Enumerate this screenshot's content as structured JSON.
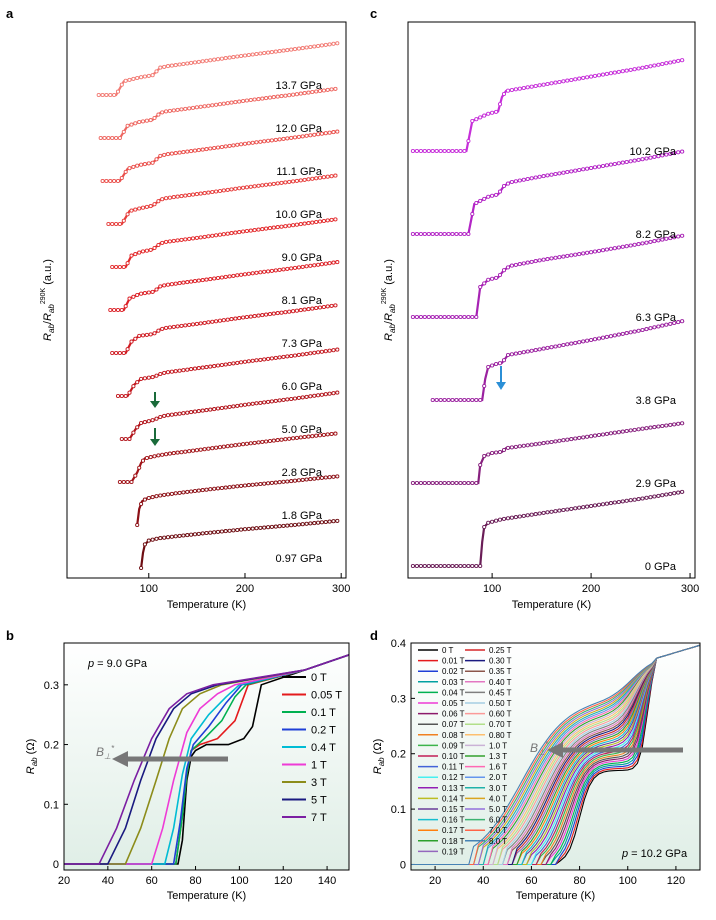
{
  "chart_data": [
    {
      "panel": "a",
      "type": "line",
      "xlabel": "Temperature (K)",
      "ylabel": "R_ab/R_ab^290K (a.u.)",
      "xlim": [
        15,
        305
      ],
      "xticks": [
        100,
        200,
        300
      ],
      "x_tick_labels": [
        "100",
        "200",
        "300"
      ],
      "series": [
        {
          "name": "0.97 GPa",
          "color": "#6e0d12",
          "x": [
            92,
            94,
            96,
            100,
            110,
            130,
            160,
            200,
            250,
            296
          ],
          "y": [
            0,
            0.4,
            0.62,
            0.72,
            0.78,
            0.84,
            0.92,
            1.02,
            1.13,
            1.24
          ]
        },
        {
          "name": "1.8 GPa",
          "color": "#8c1016",
          "x": [
            88,
            90,
            93,
            98,
            110,
            130,
            160,
            200,
            250,
            296
          ],
          "y": [
            0,
            0.42,
            0.62,
            0.7,
            0.77,
            0.84,
            0.93,
            1.04,
            1.16,
            1.28
          ]
        },
        {
          "name": "2.8 GPa",
          "color": "#a11318",
          "x": [
            70,
            82,
            88,
            92,
            96,
            110,
            120,
            160,
            200,
            250,
            296
          ],
          "y": [
            0,
            0,
            0.25,
            0.5,
            0.62,
            0.7,
            0.74,
            0.87,
            1.0,
            1.15,
            1.28
          ]
        },
        {
          "name": "5.0 GPa",
          "color": "#b2141b",
          "x": [
            72,
            80,
            86,
            92,
            105,
            112,
            118,
            160,
            200,
            250,
            296
          ],
          "y": [
            0,
            0,
            0.25,
            0.42,
            0.5,
            0.58,
            0.62,
            0.76,
            0.9,
            1.06,
            1.22
          ]
        },
        {
          "name": "6.0 GPa",
          "color": "#c3181f",
          "x": [
            68,
            78,
            85,
            92,
            105,
            112,
            118,
            160,
            200,
            250,
            296
          ],
          "y": [
            0,
            0,
            0.3,
            0.45,
            0.5,
            0.58,
            0.62,
            0.76,
            0.9,
            1.06,
            1.22
          ]
        },
        {
          "name": "7.3 GPa",
          "color": "#cf1c23",
          "x": [
            62,
            76,
            82,
            90,
            105,
            112,
            118,
            160,
            200,
            250,
            296
          ],
          "y": [
            0,
            0,
            0.3,
            0.45,
            0.5,
            0.62,
            0.66,
            0.8,
            0.94,
            1.1,
            1.26
          ]
        },
        {
          "name": "8.1 GPa",
          "color": "#dc2127",
          "x": [
            60,
            74,
            80,
            90,
            105,
            112,
            118,
            160,
            200,
            250,
            296
          ],
          "y": [
            0,
            0,
            0.3,
            0.42,
            0.48,
            0.62,
            0.66,
            0.8,
            0.94,
            1.1,
            1.26
          ]
        },
        {
          "name": "9.0 GPa",
          "color": "#e32b2d",
          "x": [
            62,
            76,
            82,
            92,
            104,
            112,
            118,
            160,
            200,
            250,
            296
          ],
          "y": [
            0,
            0,
            0.3,
            0.4,
            0.46,
            0.62,
            0.66,
            0.8,
            0.94,
            1.1,
            1.26
          ]
        },
        {
          "name": "10.0 GPa",
          "color": "#e63d3b",
          "x": [
            58,
            72,
            80,
            92,
            104,
            112,
            118,
            160,
            200,
            250,
            296
          ],
          "y": [
            0,
            0,
            0.34,
            0.42,
            0.48,
            0.64,
            0.68,
            0.82,
            0.96,
            1.12,
            1.28
          ]
        },
        {
          "name": "11.1 GPa",
          "color": "#ea514d",
          "x": [
            52,
            70,
            78,
            90,
            104,
            112,
            118,
            160,
            200,
            250,
            296
          ],
          "y": [
            0,
            0,
            0.32,
            0.42,
            0.48,
            0.66,
            0.7,
            0.84,
            0.98,
            1.14,
            1.3
          ]
        },
        {
          "name": "12.0 GPa",
          "color": "#ee6761",
          "x": [
            50,
            70,
            78,
            90,
            104,
            112,
            118,
            160,
            200,
            250,
            296
          ],
          "y": [
            0,
            0,
            0.32,
            0.42,
            0.48,
            0.66,
            0.7,
            0.84,
            0.98,
            1.14,
            1.3
          ]
        },
        {
          "name": "13.7 GPa",
          "color": "#f27b74",
          "x": [
            48,
            66,
            74,
            90,
            104,
            112,
            120,
            160,
            200,
            250,
            296
          ],
          "y": [
            0,
            0,
            0.36,
            0.46,
            0.52,
            0.72,
            0.76,
            0.9,
            1.04,
            1.2,
            1.36
          ]
        }
      ],
      "annotations": [
        "green arrows at ~118 K on 5.0 GPa and 2.8 GPa curves"
      ]
    },
    {
      "panel": "c",
      "type": "line",
      "xlabel": "Temperature (K)",
      "ylabel": "R_ab/R_ab^290K (a.u.)",
      "xlim": [
        15,
        305
      ],
      "xticks": [
        100,
        200,
        300
      ],
      "x_tick_labels": [
        "100",
        "200",
        "300"
      ],
      "series": [
        {
          "name": "0 GPa",
          "color": "#6a1d57",
          "x": [
            20,
            88,
            90,
            92,
            96,
            110,
            150,
            200,
            250,
            294
          ],
          "y": [
            0,
            0,
            0.4,
            0.65,
            0.72,
            0.78,
            0.88,
            1.0,
            1.12,
            1.24
          ]
        },
        {
          "name": "2.9 GPa",
          "color": "#87207e",
          "x": [
            20,
            86,
            88,
            92,
            100,
            110,
            114,
            150,
            200,
            250,
            294
          ],
          "y": [
            0,
            0,
            0.3,
            0.45,
            0.5,
            0.52,
            0.58,
            0.66,
            0.78,
            0.9,
            1.0
          ]
        },
        {
          "name": "3.8 GPa",
          "color": "#9b22a0",
          "x": [
            40,
            90,
            93,
            96,
            104,
            110,
            116,
            150,
            200,
            250,
            294
          ],
          "y": [
            0,
            0,
            0.35,
            0.55,
            0.6,
            0.62,
            0.75,
            0.85,
            1.0,
            1.16,
            1.32
          ]
        },
        {
          "name": "6.3 GPa",
          "color": "#a723b4",
          "x": [
            20,
            84,
            88,
            96,
            106,
            112,
            118,
            150,
            200,
            250,
            294
          ],
          "y": [
            0,
            0,
            0.5,
            0.62,
            0.66,
            0.78,
            0.85,
            0.95,
            1.08,
            1.22,
            1.36
          ]
        },
        {
          "name": "8.2 GPa",
          "color": "#b325c6",
          "x": [
            20,
            76,
            82,
            96,
            106,
            112,
            118,
            150,
            200,
            250,
            294
          ],
          "y": [
            0,
            0,
            0.5,
            0.62,
            0.66,
            0.8,
            0.86,
            0.96,
            1.1,
            1.24,
            1.38
          ]
        },
        {
          "name": "10.2 GPa",
          "color": "#c62fd9",
          "x": [
            20,
            74,
            80,
            96,
            106,
            110,
            114,
            150,
            200,
            250,
            294
          ],
          "y": [
            0,
            0,
            0.5,
            0.62,
            0.66,
            0.9,
            1.0,
            1.1,
            1.24,
            1.38,
            1.52
          ]
        }
      ],
      "annotations": [
        "blue arrow at ~112 K on 2.9 GPa curve"
      ]
    },
    {
      "panel": "b",
      "type": "line",
      "xlabel": "Temperature (K)",
      "ylabel": "R_ab (Ω)",
      "xlim": [
        20,
        150
      ],
      "ylim": [
        -0.01,
        0.37
      ],
      "xticks": [
        20,
        40,
        60,
        80,
        100,
        120,
        140
      ],
      "yticks": [
        0,
        0.1,
        0.2,
        0.3
      ],
      "y_tick_labels": [
        "0",
        "0.1",
        "0.2",
        "0.3"
      ],
      "annotation": "p = 9.0 GPa",
      "field_label": "B_⊥",
      "legend_position": "right",
      "series": [
        {
          "name": "0 T",
          "color": "#000000",
          "x": [
            20,
            72,
            74,
            76,
            78,
            80,
            85,
            95,
            102,
            106,
            110,
            130,
            150
          ],
          "y": [
            0,
            0,
            0.04,
            0.14,
            0.18,
            0.19,
            0.2,
            0.2,
            0.21,
            0.23,
            0.3,
            0.325,
            0.35
          ]
        },
        {
          "name": "0.05 T",
          "color": "#e41a1c",
          "x": [
            20,
            71,
            74,
            76,
            78,
            82,
            90,
            98,
            104,
            130,
            150
          ],
          "y": [
            0,
            0,
            0.08,
            0.15,
            0.19,
            0.2,
            0.21,
            0.24,
            0.3,
            0.325,
            0.35
          ]
        },
        {
          "name": "0.1 T",
          "color": "#00b050",
          "x": [
            20,
            71,
            74,
            76,
            78,
            84,
            92,
            98,
            103,
            130,
            150
          ],
          "y": [
            0,
            0,
            0.08,
            0.15,
            0.19,
            0.21,
            0.24,
            0.28,
            0.3,
            0.325,
            0.35
          ]
        },
        {
          "name": "0.2 T",
          "color": "#1f3fd6",
          "x": [
            20,
            70,
            73,
            76,
            79,
            86,
            94,
            101,
            130,
            150
          ],
          "y": [
            0,
            0,
            0.07,
            0.16,
            0.2,
            0.23,
            0.27,
            0.3,
            0.325,
            0.35
          ]
        },
        {
          "name": "0.4 T",
          "color": "#00bcd4",
          "x": [
            20,
            66,
            70,
            74,
            78,
            86,
            94,
            100,
            130,
            150
          ],
          "y": [
            0,
            0,
            0.06,
            0.15,
            0.21,
            0.25,
            0.28,
            0.3,
            0.325,
            0.35
          ]
        },
        {
          "name": "1 T",
          "color": "#ee3bd6",
          "x": [
            20,
            60,
            65,
            70,
            76,
            82,
            90,
            98,
            130,
            150
          ],
          "y": [
            0,
            0,
            0.06,
            0.14,
            0.22,
            0.26,
            0.285,
            0.3,
            0.325,
            0.35
          ]
        },
        {
          "name": "3 T",
          "color": "#8c8c1a",
          "x": [
            20,
            48,
            55,
            62,
            68,
            74,
            82,
            92,
            130,
            150
          ],
          "y": [
            0,
            0,
            0.06,
            0.14,
            0.21,
            0.26,
            0.285,
            0.3,
            0.325,
            0.35
          ]
        },
        {
          "name": "5 T",
          "color": "#1a1a80",
          "x": [
            20,
            40,
            48,
            55,
            62,
            70,
            78,
            90,
            130,
            150
          ],
          "y": [
            0,
            0,
            0.06,
            0.14,
            0.21,
            0.26,
            0.285,
            0.3,
            0.325,
            0.35
          ]
        },
        {
          "name": "7 T",
          "color": "#7b1fa2",
          "x": [
            20,
            36,
            44,
            52,
            60,
            68,
            76,
            88,
            130,
            150
          ],
          "y": [
            0,
            0,
            0.06,
            0.14,
            0.21,
            0.26,
            0.285,
            0.3,
            0.325,
            0.35
          ]
        }
      ]
    },
    {
      "panel": "d",
      "type": "line",
      "xlabel": "Temperature (K)",
      "ylabel": "R_ab (Ω)",
      "xlim": [
        10,
        130
      ],
      "ylim": [
        -0.01,
        0.4
      ],
      "xticks": [
        20,
        40,
        60,
        80,
        100,
        120
      ],
      "yticks": [
        0,
        0.1,
        0.2,
        0.3,
        0.4
      ],
      "y_tick_labels": [
        "0",
        "0.1",
        "0.2",
        "0.3",
        "0.4"
      ],
      "annotation": "p = 10.2 GPa",
      "field_label": "B_⊥",
      "legend_position": "top-left",
      "series_names": [
        "0 T",
        "0.01 T",
        "0.02 T",
        "0.03 T",
        "0.04 T",
        "0.05 T",
        "0.06 T",
        "0.07 T",
        "0.08 T",
        "0.09 T",
        "0.10 T",
        "0.11 T",
        "0.12 T",
        "0.13 T",
        "0.14 T",
        "0.15 T",
        "0.16 T",
        "0.17 T",
        "0.18 T",
        "0.19 T",
        "0.25 T",
        "0.30 T",
        "0.35 T",
        "0.40 T",
        "0.45 T",
        "0.50 T",
        "0.60 T",
        "0.70 T",
        "0.80 T",
        "1.0 T",
        "1.3 T",
        "1.6 T",
        "2.0 T",
        "3.0 T",
        "4.0 T",
        "5.0 T",
        "6.0 T",
        "7.0 T",
        "8.0 T"
      ],
      "series_colors": [
        "#000000",
        "#e41a1c",
        "#1f3fd6",
        "#00a0a0",
        "#00b050",
        "#ee3bd6",
        "#8c1a6b",
        "#555555",
        "#f08020",
        "#3cb44b",
        "#c21e56",
        "#4363d8",
        "#46f0f0",
        "#911eb4",
        "#bcbd22",
        "#6a3d9a",
        "#17becf",
        "#ff7f0e",
        "#2ca02c",
        "#9467bd",
        "#d62728",
        "#1a1a80",
        "#8c564b",
        "#e377c2",
        "#7f7f7f",
        "#a6cee3",
        "#fb9a99",
        "#b2df8a",
        "#fdbf6f",
        "#cab2d6",
        "#33a02c",
        "#ff69b4",
        "#6495ed",
        "#20b2aa",
        "#daa520",
        "#9370db",
        "#3cb371",
        "#ff6347",
        "#4682b4"
      ]
    }
  ]
}
